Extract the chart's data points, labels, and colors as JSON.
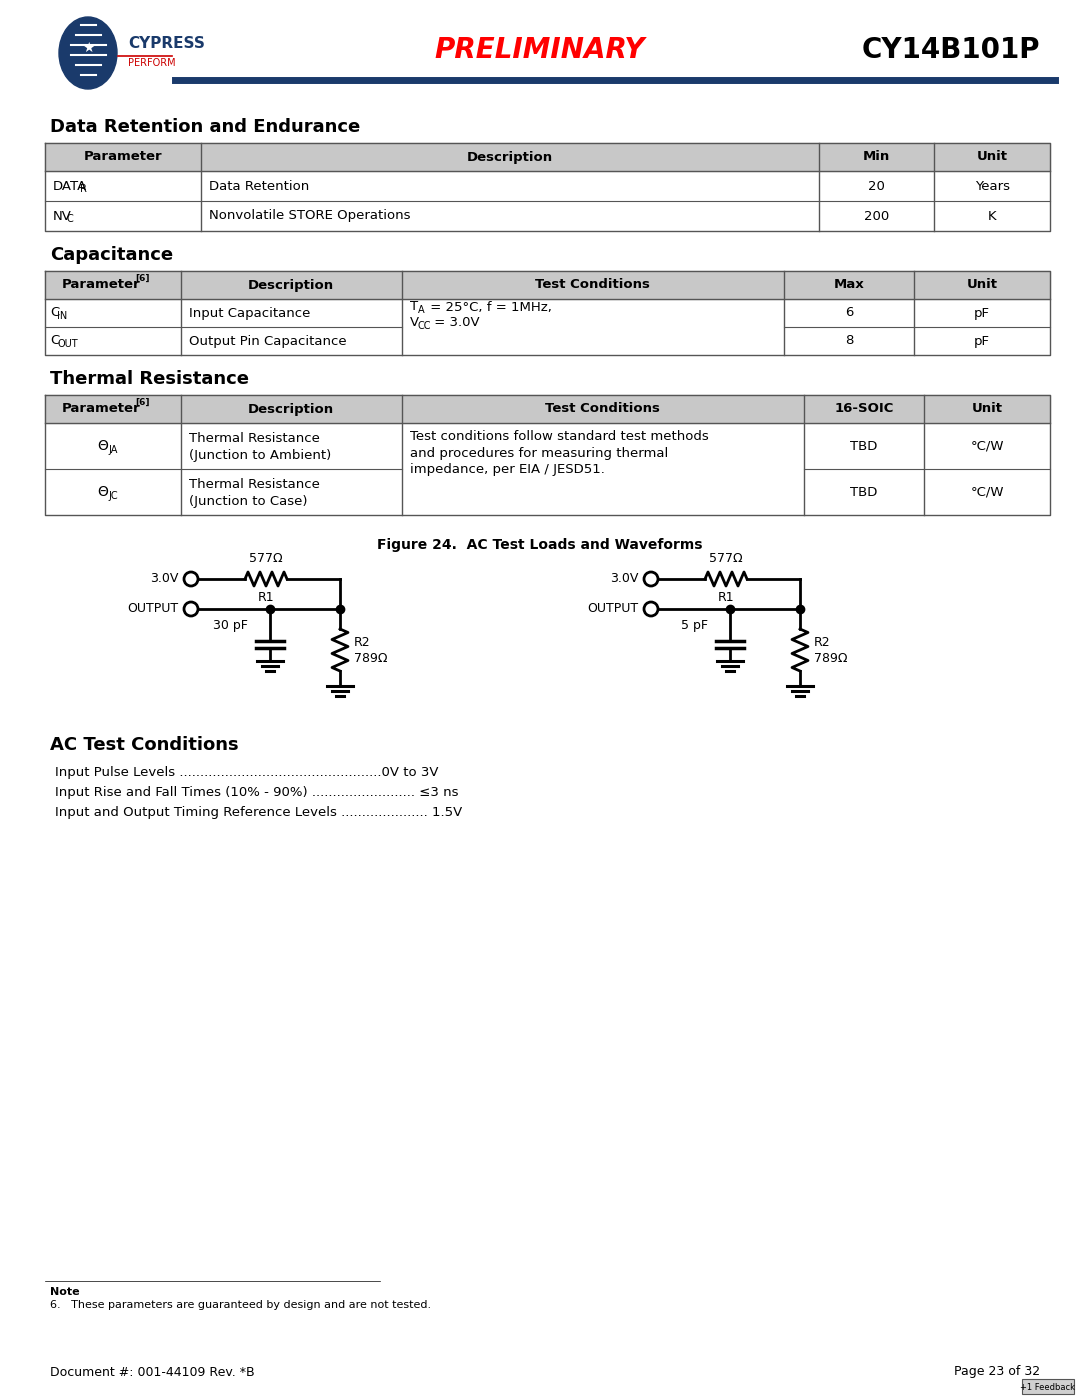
{
  "page_bg": "#ffffff",
  "preliminary_text": "PRELIMINARY",
  "preliminary_color": "#ff0000",
  "title_text": "CY14B101P",
  "title_color": "#000000",
  "line_color": "#1a3a6b",
  "section1_title": "Data Retention and Endurance",
  "section2_title": "Capacitance",
  "section3_title": "Thermal Resistance",
  "figure_title": "Figure 24.  AC Test Loads and Waveforms",
  "ac_section_title": "AC Test Conditions",
  "ac_line1": "Input Pulse Levels .................................................0V to 3V",
  "ac_line2": "Input Rise and Fall Times (10% - 90%) ......................... ≤3 ns",
  "ac_line3": "Input and Output Timing Reference Levels ..................... 1.5V",
  "note_bold": "Note",
  "note_body": "6.   These parameters are guaranteed by design and are not tested.",
  "footer_left": "Document #: 001-44109 Rev. *B",
  "footer_right": "Page 23 of 32",
  "header_color": "#c8c8c8",
  "table_border_color": "#555555",
  "omega": "Ω",
  "degree": "°",
  "theta": "Θ",
  "leq": "≤",
  "cap_label1": "30 pF",
  "cap_label2": "5 pF"
}
